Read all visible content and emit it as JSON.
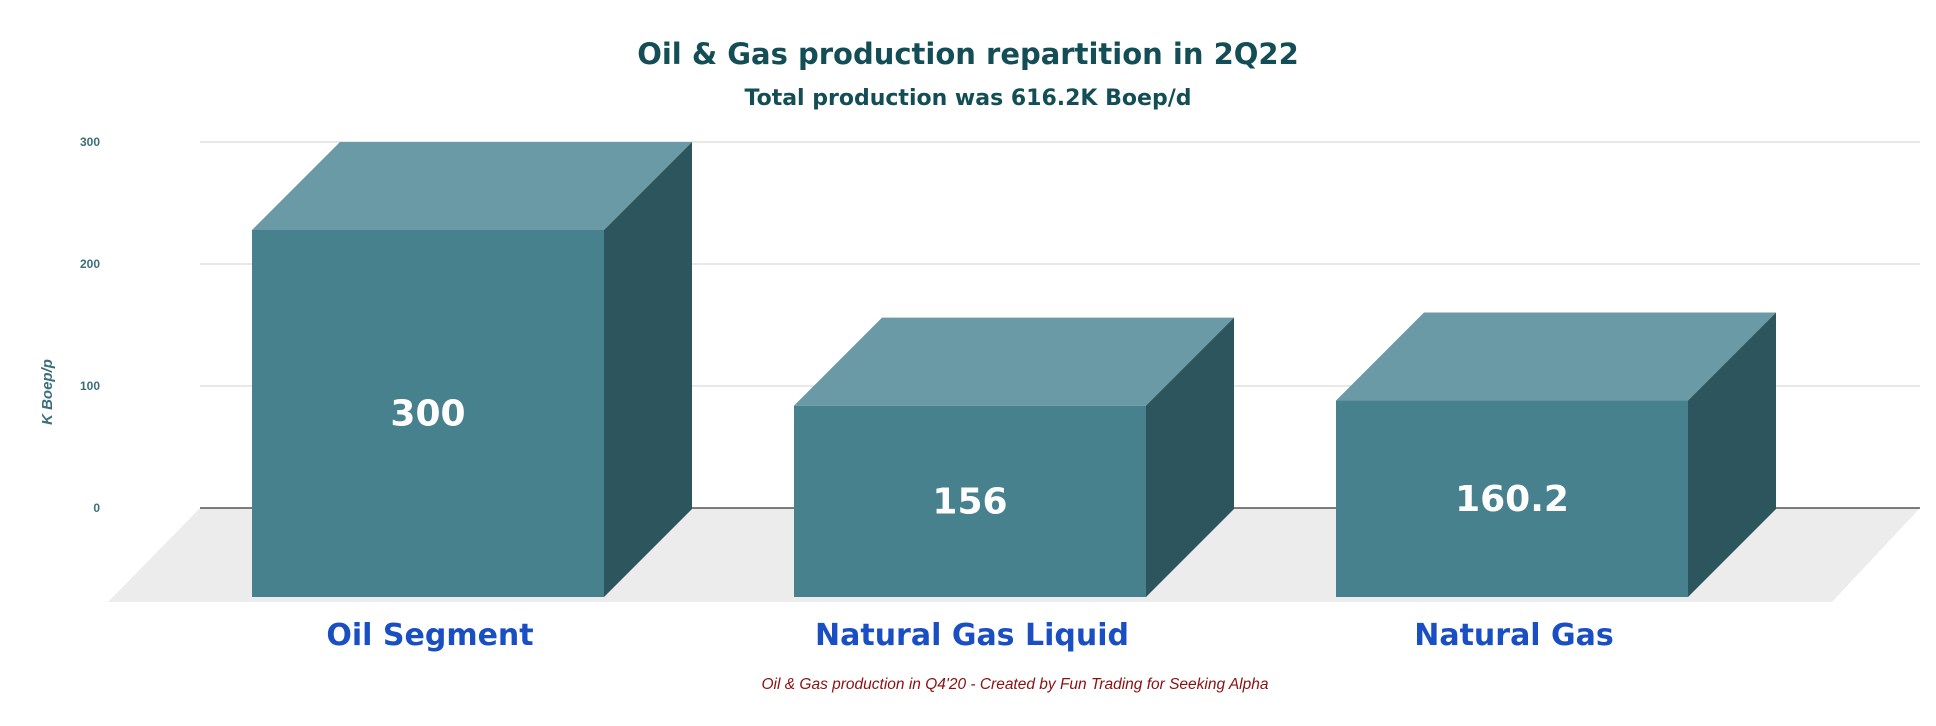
{
  "chart_data": {
    "type": "bar",
    "title": "Oil & Gas production repartition in 2Q22",
    "subtitle": "Total production was 616.2K Boep/d",
    "ylabel": "K Boep/p",
    "xlabel": "",
    "caption": "Oil & Gas production in Q4'20 - Created by Fun Trading for Seeking Alpha",
    "yticks": [
      "0",
      "100",
      "200",
      "300"
    ],
    "ylim": [
      0,
      300
    ],
    "grid": true,
    "categories": [
      "Oil Segment",
      "Natural Gas Liquid",
      "Natural Gas"
    ],
    "values": [
      300,
      156,
      160.2
    ],
    "value_labels": [
      "300",
      "156",
      "160.2"
    ],
    "colors": {
      "front": "#47818d",
      "top": "#6a9aa5",
      "side": "#2d555d",
      "floor": "#ececec"
    }
  }
}
